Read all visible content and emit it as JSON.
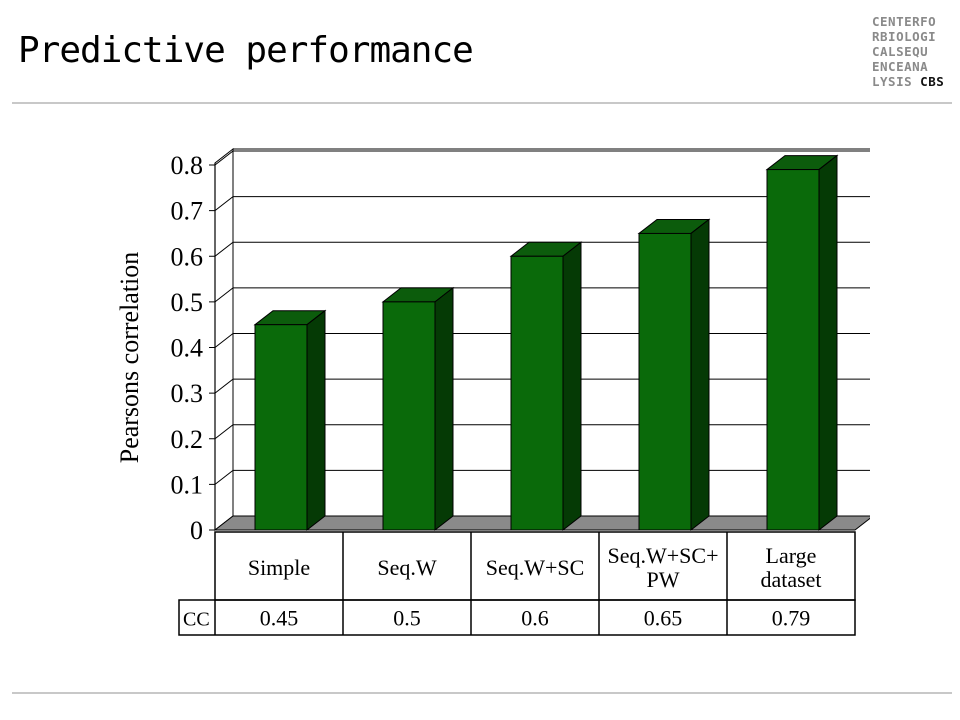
{
  "slide": {
    "title": "Predictive performance"
  },
  "logo": {
    "lines": [
      "CENTERFO",
      "RBIOLOGI",
      "CALSEQU",
      "ENCEANA",
      "LYSIS"
    ],
    "emphasis": "CBS"
  },
  "colors": {
    "bar_front": "#0a6a0a",
    "bar_side": "#053a05",
    "bar_top": "#0c5c0c",
    "floor": "#8a8a8a"
  },
  "chart_data": {
    "type": "bar",
    "ylabel": "Pearsons correlation",
    "xlabel": "",
    "ylim": [
      0,
      0.8
    ],
    "yticks": [
      "0",
      "0.1",
      "0.2",
      "0.3",
      "0.4",
      "0.5",
      "0.6",
      "0.7",
      "0.8"
    ],
    "grid": true,
    "categories": [
      [
        "Simple"
      ],
      [
        "Seq.W"
      ],
      [
        "Seq.W+SC"
      ],
      [
        "Seq.W+SC+",
        "PW"
      ],
      [
        "Large",
        "dataset"
      ]
    ],
    "values": [
      0.45,
      0.5,
      0.6,
      0.65,
      0.79
    ],
    "table": {
      "row_label": "CC",
      "values": [
        "0.45",
        "0.5",
        "0.6",
        "0.65",
        "0.79"
      ]
    }
  }
}
